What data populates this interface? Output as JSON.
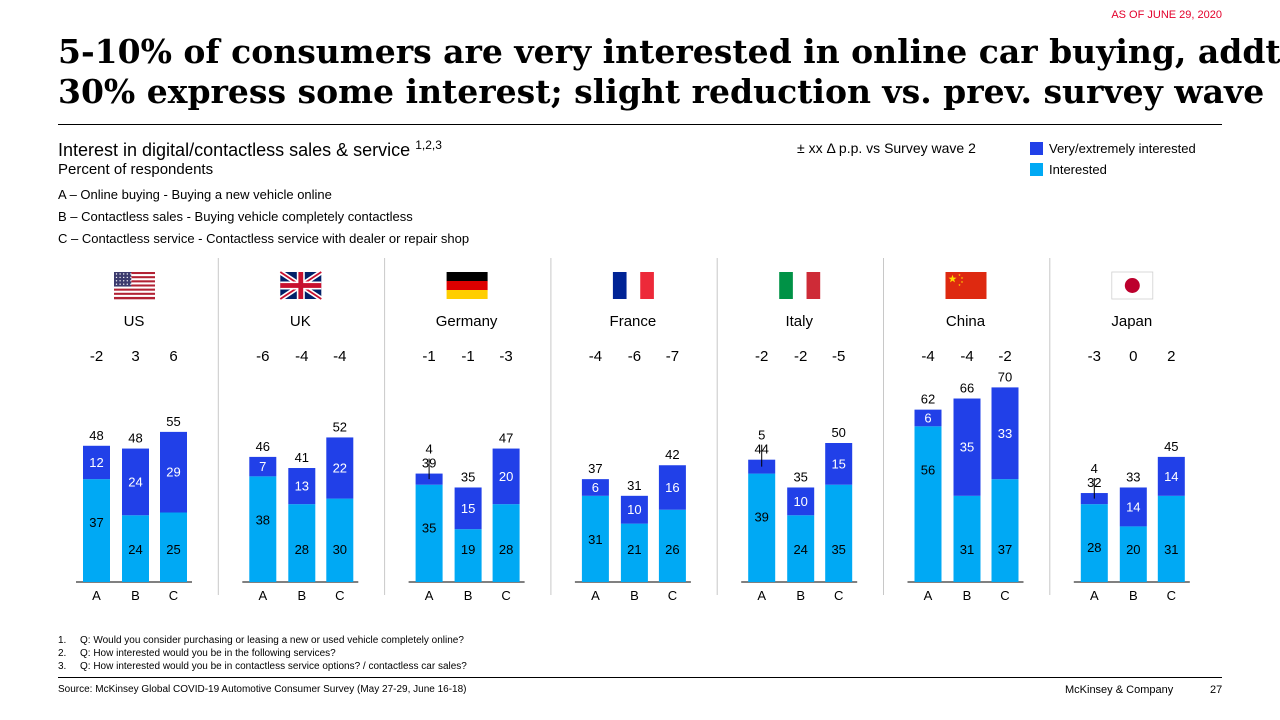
{
  "header": {
    "as_of": "AS OF JUNE 29, 2020",
    "title_line1": "5-10% of consumers are very interested in online car buying, addt.",
    "title_line2": "30% express some interest; slight reduction vs. prev. survey wave"
  },
  "subtitle": "Interest in digital/contactless sales & service",
  "subtitle_sup": "1,2,3",
  "unit_label": "Percent of respondents",
  "definitions": [
    "A – Online buying - Buying a new vehicle online",
    "B – Contactless sales - Buying vehicle completely contactless",
    "C – Contactless service - Contactless service with dealer or repair shop"
  ],
  "delta_note": "± xx  Δ p.p. vs Survey wave 2",
  "legend": [
    {
      "label": "Very/extremely interested",
      "color": "#2140e8"
    },
    {
      "label": "Interested",
      "color": "#00a9f4"
    }
  ],
  "chart_data": {
    "type": "bar",
    "stacked": true,
    "categories": [
      "A",
      "B",
      "C"
    ],
    "series_names": [
      "Interested",
      "Very/extremely interested"
    ],
    "colors": {
      "interested": "#00a9f4",
      "very": "#2140e8"
    },
    "groups": [
      {
        "country": "US",
        "flag": "us-flag",
        "deltas": [
          "-2",
          "3",
          "6"
        ],
        "interested": [
          37,
          24,
          25
        ],
        "very": [
          12,
          24,
          29
        ],
        "totals": [
          48,
          48,
          55
        ]
      },
      {
        "country": "UK",
        "flag": "uk-flag",
        "deltas": [
          "-6",
          "-4",
          "-4"
        ],
        "interested": [
          38,
          28,
          30
        ],
        "very": [
          7,
          13,
          22
        ],
        "totals": [
          46,
          41,
          52
        ]
      },
      {
        "country": "Germany",
        "flag": "germany-flag",
        "deltas": [
          "-1",
          "-1",
          "-3"
        ],
        "interested": [
          35,
          19,
          28
        ],
        "very": [
          4,
          15,
          20
        ],
        "totals": [
          39,
          35,
          47
        ]
      },
      {
        "country": "France",
        "flag": "france-flag",
        "deltas": [
          "-4",
          "-6",
          "-7"
        ],
        "interested": [
          31,
          21,
          26
        ],
        "very": [
          6,
          10,
          16
        ],
        "totals": [
          37,
          31,
          42
        ]
      },
      {
        "country": "Italy",
        "flag": "italy-flag",
        "deltas": [
          "-2",
          "-2",
          "-5"
        ],
        "interested": [
          39,
          24,
          35
        ],
        "very": [
          5,
          10,
          15
        ],
        "totals": [
          44,
          35,
          50
        ]
      },
      {
        "country": "China",
        "flag": "china-flag",
        "deltas": [
          "-4",
          "-4",
          "-2"
        ],
        "interested": [
          56,
          31,
          37
        ],
        "very": [
          6,
          35,
          33
        ],
        "totals": [
          62,
          66,
          70
        ]
      },
      {
        "country": "Japan",
        "flag": "japan-flag",
        "deltas": [
          "-3",
          "0",
          "2"
        ],
        "interested": [
          28,
          20,
          31
        ],
        "very": [
          4,
          14,
          14
        ],
        "totals": [
          32,
          33,
          45
        ]
      }
    ]
  },
  "footnotes": [
    {
      "num": "1.",
      "text": "Q: Would you consider purchasing or leasing a new or used vehicle completely online?"
    },
    {
      "num": "2.",
      "text": "Q: How interested would you be in the following services?"
    },
    {
      "num": "3.",
      "text": "Q: How interested would you be in contactless service options? / contactless car sales?"
    }
  ],
  "source": "Source: McKinsey Global COVID-19 Automotive Consumer Survey (May 27-29, June 16-18)",
  "brand": "McKinsey & Company",
  "page_number": "27"
}
